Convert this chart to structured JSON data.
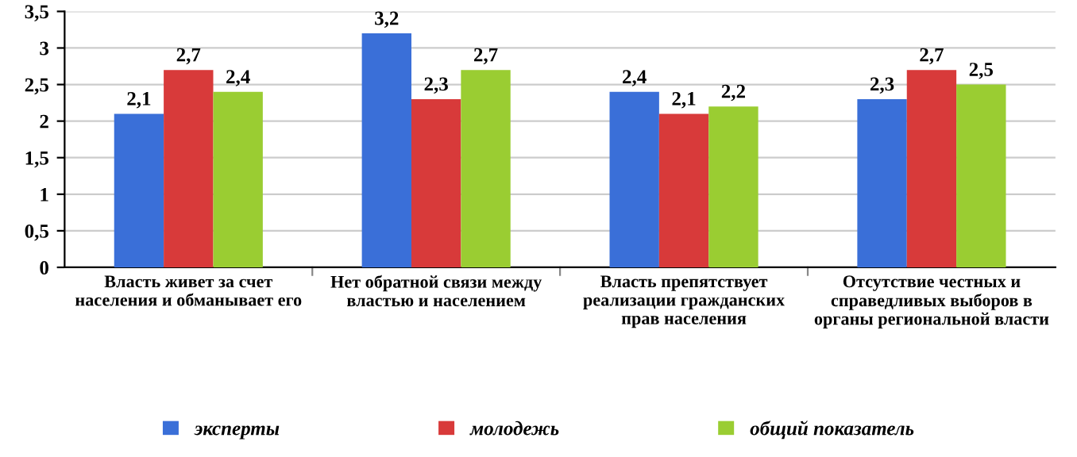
{
  "chart_data": {
    "type": "bar",
    "categories": [
      "Власть живет за счет населения и обманывает его",
      "Нет обратной связи между властью и населением",
      "Власть препятствует реализации гражданских прав населения",
      "Отсутствие честных и справедливых выборов в органы региональной власти"
    ],
    "series": [
      {
        "name": "эксперты",
        "color": "#3a6fd8",
        "values": [
          2.1,
          3.2,
          2.4,
          2.3
        ],
        "value_labels": [
          "2,1",
          "3,2",
          "2,4",
          "2,3"
        ]
      },
      {
        "name": "молодежь",
        "color": "#d83a3a",
        "values": [
          2.7,
          2.3,
          2.1,
          2.7
        ],
        "value_labels": [
          "2,7",
          "2,3",
          "2,1",
          "2,7"
        ]
      },
      {
        "name": "общий показатель",
        "color": "#9acd32",
        "values": [
          2.4,
          2.7,
          2.2,
          2.5
        ],
        "value_labels": [
          "2,4",
          "2,7",
          "2,2",
          "2,5"
        ]
      }
    ],
    "ylim": [
      0,
      3.5
    ],
    "yticks": [
      0,
      {
        "value": 0.5,
        "label": "0,5"
      },
      1,
      {
        "value": 1.5,
        "label": "1,5"
      },
      2,
      {
        "value": 2.5,
        "label": "2,5"
      },
      3,
      {
        "value": 3.5,
        "label": "3,5"
      }
    ],
    "grid": "y",
    "legend": "bottom"
  }
}
